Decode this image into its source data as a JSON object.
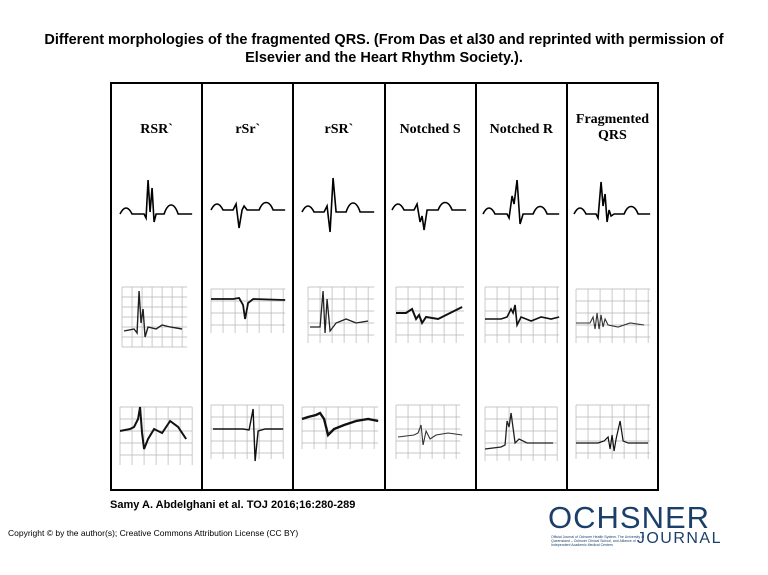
{
  "title": "Different morphologies of the fragmented QRS. (From Das et al30 and reprinted with permission of Elsevier and the Heart Rhythm Society.).",
  "columns": [
    {
      "label": "RSR`"
    },
    {
      "label": "rSr`"
    },
    {
      "label": "rSR`"
    },
    {
      "label": "Notched S"
    },
    {
      "label": "Notched R"
    },
    {
      "label_line1": "Fragmented",
      "label_line2": "QRS"
    }
  ],
  "citation": "Samy A. Abdelghani et al. TOJ 2016;16:280-289",
  "copyright": "Copyright © by the author(s); Creative Commons Attribution License (CC BY)",
  "logo": {
    "brand": "OCHSNER",
    "sub": "JOURNAL",
    "tagline": "Official Journal of Ochsner Health System, The University of Queensland – Ochsner Clinical School, and Alliance of Independent Academic Medical Centers"
  },
  "colors": {
    "logo": "#1b3f6b",
    "grid": "#b5b5b5"
  }
}
